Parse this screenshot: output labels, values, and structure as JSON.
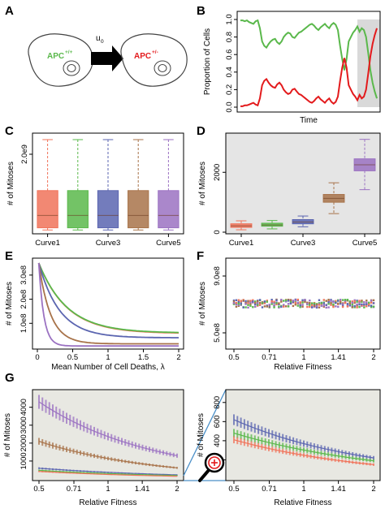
{
  "panels": {
    "A": {
      "letter": "A",
      "cell_left_label": "APC",
      "cell_left_sup": "+/+",
      "cell_right_label": "APC",
      "cell_right_sup": "+/-",
      "arrow_label": "u",
      "arrow_sub": "0",
      "colors": {
        "left": "#5ab84b",
        "right": "#e31a1c"
      }
    },
    "B": {
      "letter": "B",
      "ylabel": "Proportion of Cells",
      "xlabel": "Time",
      "yticks": [
        "0.0",
        "0.2",
        "0.4",
        "0.6",
        "0.8",
        "1.0"
      ]
    },
    "C": {
      "letter": "C",
      "ylabel": "# of Mitoses",
      "ytick": "2.0e9",
      "xticks": [
        "Curve1",
        "Curve3",
        "Curve5"
      ]
    },
    "D": {
      "letter": "D",
      "ylabel": "# of Mitoses",
      "yticks": [
        "0",
        "2000"
      ],
      "xticks": [
        "Curve1",
        "Curve3",
        "Curve5"
      ]
    },
    "E": {
      "letter": "E",
      "ylabel": "# of Mitoses",
      "yticks": [
        "1.0e8",
        "2.0e8",
        "3.0e8"
      ],
      "xticks": [
        "0",
        "0.5",
        "1",
        "1.5",
        "2"
      ],
      "xlabel": "Mean Number of Cell Deaths, λ"
    },
    "F": {
      "letter": "F",
      "ylabel": "# of Mitoses",
      "yticks": [
        "5.0e8",
        "9.0e8"
      ],
      "xticks": [
        "0.5",
        "0.71",
        "1",
        "1.41",
        "2"
      ],
      "xlabel": "Relative Fitness"
    },
    "G": {
      "letter": "G",
      "ylabel": "# of Mitoses",
      "yticks": [
        "1000",
        "2000",
        "3000",
        "4000"
      ],
      "xticks": [
        "0.5",
        "0.71",
        "1",
        "1.41",
        "2"
      ],
      "xlabel": "Relative Fitness"
    },
    "G2": {
      "ylabel": "# of Mitoses",
      "yticks": [
        "200",
        "400",
        "600",
        "800"
      ],
      "xticks": [
        "0.5",
        "0.71",
        "1",
        "1.41",
        "2"
      ],
      "xlabel": "Relative Fitness"
    }
  },
  "chart_data": [
    {
      "id": "B",
      "type": "line",
      "ylim": [
        0,
        1
      ],
      "series": [
        {
          "color": "#5ab84b",
          "values": [
            0.99,
            0.99,
            0.98,
            0.99,
            0.97,
            0.96,
            0.95,
            0.98,
            0.99,
            0.9,
            0.75,
            0.7,
            0.68,
            0.72,
            0.75,
            0.77,
            0.78,
            0.74,
            0.72,
            0.75,
            0.8,
            0.83,
            0.85,
            0.84,
            0.8,
            0.79,
            0.82,
            0.85,
            0.86,
            0.88,
            0.9,
            0.92,
            0.94,
            0.95,
            0.93,
            0.9,
            0.88,
            0.91,
            0.93,
            0.95,
            0.92,
            0.9,
            0.94,
            0.96,
            0.94,
            0.88,
            0.7,
            0.55,
            0.42,
            0.55,
            0.75,
            0.8,
            0.85,
            0.88,
            0.92,
            0.86,
            0.9,
            0.88,
            0.8,
            0.62,
            0.42,
            0.28,
            0.18,
            0.1
          ]
        },
        {
          "color": "#e31a1c",
          "values": [
            0.01,
            0.01,
            0.02,
            0.02,
            0.03,
            0.04,
            0.05,
            0.03,
            0.02,
            0.1,
            0.25,
            0.3,
            0.32,
            0.28,
            0.25,
            0.23,
            0.22,
            0.26,
            0.28,
            0.25,
            0.2,
            0.17,
            0.15,
            0.16,
            0.2,
            0.21,
            0.18,
            0.15,
            0.14,
            0.12,
            0.1,
            0.08,
            0.06,
            0.05,
            0.07,
            0.1,
            0.12,
            0.09,
            0.07,
            0.05,
            0.08,
            0.1,
            0.06,
            0.04,
            0.06,
            0.12,
            0.3,
            0.45,
            0.56,
            0.45,
            0.25,
            0.2,
            0.15,
            0.12,
            0.08,
            0.14,
            0.1,
            0.12,
            0.2,
            0.38,
            0.58,
            0.72,
            0.82,
            0.9
          ]
        }
      ]
    },
    {
      "id": "C",
      "type": "box",
      "colors": [
        "#f0735a",
        "#5ab84b",
        "#5b65b0",
        "#a8734a",
        "#9b72c2"
      ],
      "boxes": [
        {
          "min": 0.02,
          "q1": 0.1,
          "med": 0.55,
          "q3": 1.45,
          "max": 3.3
        },
        {
          "min": 0.02,
          "q1": 0.1,
          "med": 0.55,
          "q3": 1.45,
          "max": 3.3
        },
        {
          "min": 0.02,
          "q1": 0.1,
          "med": 0.55,
          "q3": 1.45,
          "max": 3.3
        },
        {
          "min": 0.02,
          "q1": 0.1,
          "med": 0.55,
          "q3": 1.45,
          "max": 3.3
        },
        {
          "min": 0.02,
          "q1": 0.1,
          "med": 0.55,
          "q3": 1.45,
          "max": 3.3
        }
      ]
    },
    {
      "id": "D",
      "type": "box",
      "ylim": [
        0,
        3200
      ],
      "colors": [
        "#f0735a",
        "#5ab84b",
        "#5b65b0",
        "#a8734a",
        "#9b72c2"
      ],
      "boxes": [
        {
          "min": 80,
          "q1": 160,
          "med": 210,
          "q3": 280,
          "max": 380
        },
        {
          "min": 110,
          "q1": 200,
          "med": 240,
          "q3": 300,
          "max": 390
        },
        {
          "min": 180,
          "q1": 280,
          "med": 340,
          "q3": 420,
          "max": 540
        },
        {
          "min": 620,
          "q1": 1000,
          "med": 1130,
          "q3": 1260,
          "max": 1650
        },
        {
          "min": 1420,
          "q1": 2050,
          "med": 2250,
          "q3": 2450,
          "max": 3100
        }
      ]
    },
    {
      "id": "E",
      "type": "line",
      "xlim": [
        0,
        2
      ],
      "ylim": [
        0,
        3.5
      ],
      "series": [
        {
          "color": "#f0735a",
          "peak": 3.5,
          "end": 0.58,
          "k": 2.5
        },
        {
          "color": "#5ab84b",
          "peak": 3.5,
          "end": 0.6,
          "k": 2.5
        },
        {
          "color": "#5b65b0",
          "peak": 3.5,
          "end": 0.4,
          "k": 3.4
        },
        {
          "color": "#a8734a",
          "peak": 3.5,
          "end": 0.15,
          "k": 6
        },
        {
          "color": "#9b72c2",
          "peak": 3.5,
          "end": 0.06,
          "k": 14
        }
      ]
    },
    {
      "id": "F",
      "type": "scatter",
      "level": 8.0,
      "spread": 0.25
    },
    {
      "id": "G",
      "type": "line",
      "ylim": [
        0,
        4800
      ],
      "series": [
        {
          "color": "#9b72c2",
          "start": 4300,
          "end": 1300
        },
        {
          "color": "#a8734a",
          "start": 2100,
          "end": 620
        },
        {
          "color": "#5b65b0",
          "start": 600,
          "end": 230
        },
        {
          "color": "#5ab84b",
          "start": 480,
          "end": 190
        },
        {
          "color": "#f0735a",
          "start": 420,
          "end": 150
        }
      ]
    },
    {
      "id": "G2",
      "type": "line",
      "ylim": [
        0,
        900
      ],
      "series": [
        {
          "color": "#5b65b0",
          "start": 620,
          "end": 220
        },
        {
          "color": "#5ab84b",
          "start": 480,
          "end": 190
        },
        {
          "color": "#f0735a",
          "start": 410,
          "end": 150
        }
      ]
    }
  ]
}
